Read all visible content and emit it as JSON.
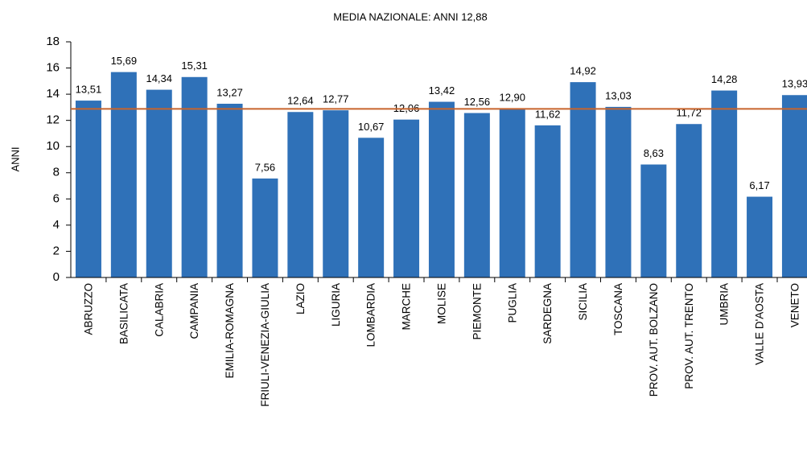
{
  "chart_data": {
    "type": "bar",
    "title": "MEDIA NAZIONALE:  ANNI 12,88",
    "y_label": "ANNI",
    "categories": [
      "ABRUZZO",
      "BASILICATA",
      "CALABRIA",
      "CAMPANIA",
      "EMILIA-ROMAGNA",
      "FRIULI-VENEZIA-GIULIA",
      "LAZIO",
      "LIGURIA",
      "LOMBARDIA",
      "MARCHE",
      "MOLISE",
      "PIEMONTE",
      "PUGLIA",
      "SARDEGNA",
      "SICILIA",
      "TOSCANA",
      "PROV. AUT. BOLZANO",
      "PROV. AUT. TRENTO",
      "UMBRIA",
      "VALLE D'AOSTA",
      "VENETO"
    ],
    "values": [
      13.51,
      15.69,
      14.34,
      15.31,
      13.27,
      7.56,
      12.64,
      12.77,
      10.67,
      12.06,
      13.42,
      12.56,
      12.9,
      11.62,
      14.92,
      13.03,
      8.63,
      11.72,
      14.28,
      6.17,
      13.93
    ],
    "value_labels": [
      "13,51",
      "15,69",
      "14,34",
      "15,31",
      "13,27",
      "7,56",
      "12,64",
      "12,77",
      "10,67",
      "12,06",
      "13,42",
      "12,56",
      "12,90",
      "11,62",
      "14,92",
      "13,03",
      "8,63",
      "11,72",
      "14,28",
      "6,17",
      "13,93"
    ],
    "color": "#2f71b8",
    "mean_line": {
      "value": 12.88,
      "color": "#c8642c"
    },
    "ylim": [
      0,
      18
    ],
    "yticks": [
      0,
      2,
      4,
      6,
      8,
      10,
      12,
      14,
      16,
      18
    ],
    "grid": false
  }
}
